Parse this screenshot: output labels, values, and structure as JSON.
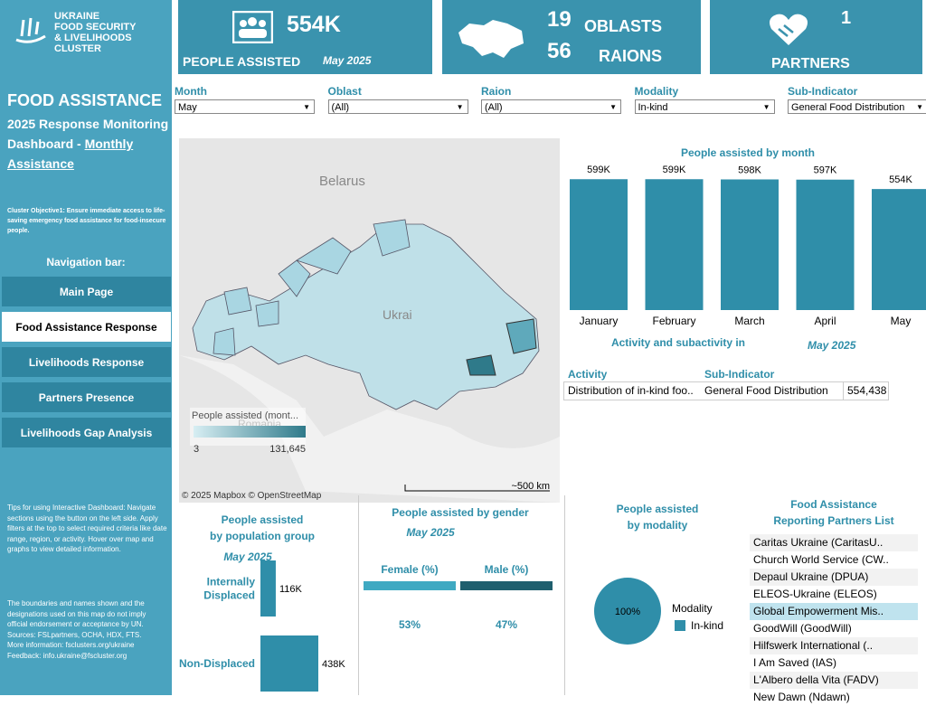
{
  "sidebar": {
    "logo": [
      "UKRAINE",
      "FOOD SECURITY",
      "& LIVELIHOODS CLUSTER"
    ],
    "title": "FOOD ASSISTANCE",
    "subtitle": [
      "2025 Response Monitoring",
      "Dashboard - ",
      "Monthly",
      "Assistance"
    ],
    "objective": "Cluster Objective1:  Ensure immediate access to life-saving emergency food assistance for food-insecure people.",
    "nav_label": "Navigation bar:",
    "nav": [
      "Main Page",
      "Food Assistance Response",
      "Livelihoods Response",
      "Partners Presence",
      "Livelihoods Gap Analysis"
    ],
    "nav_active": 1,
    "tips": "Tips for using Interactive Dashboard: Navigate sections using the button on the left side. Apply filters at the top to select required criteria like date range, region, or activity. Hover over map and graphs to view detailed information.",
    "disclaimer": "The boundaries and names shown and the designations used on this map do not imply official endorsement or acceptance by UN.",
    "sources": "Sources: FSLpartners, OCHA, HDX, FTS.",
    "more_info": "More information: fsclusters.org/ukraine",
    "feedback": "Feedback: info.ukraine@fscluster.org"
  },
  "kpis": {
    "people": {
      "value": "554K",
      "label": "PEOPLE ASSISTED",
      "period": "May 2025"
    },
    "oblasts": {
      "value": 19,
      "label": "OBLASTS"
    },
    "raions": {
      "value": 56,
      "label": "RAIONS"
    },
    "partners": {
      "value": 1,
      "label": "PARTNERS"
    }
  },
  "filters": [
    {
      "label": "Month",
      "value": "May"
    },
    {
      "label": "Oblast",
      "value": "(All)"
    },
    {
      "label": "Raion",
      "value": "(All)"
    },
    {
      "label": "Modality",
      "value": "In-kind"
    },
    {
      "label": "Sub-Indicator",
      "value": "General Food Distribution"
    }
  ],
  "map": {
    "labels": [
      "Belarus",
      "Ukrai",
      "Romania"
    ],
    "legend_title": "People assisted (mont...",
    "legend_min": "3",
    "legend_max": "131,645",
    "scale": "~500 km",
    "attribution": "© 2025 Mapbox  © OpenStreetMap"
  },
  "activity_table": {
    "title": "Activity and subactivity in",
    "period": "May 2025",
    "columns": [
      "Activity",
      "Sub-Indicator"
    ],
    "rows": [
      [
        "Distribution of in-kind foo..",
        "General Food Distribution",
        "554,438"
      ]
    ]
  },
  "partners_list": {
    "title": [
      "Food Assistance",
      "Reporting Partners List"
    ],
    "items": [
      "Caritas Ukraine (CaritasU..",
      "Church World Service (CW..",
      "Depaul Ukraine (DPUA)",
      "ELEOS-Ukraine (ELEOS)",
      "Global Empowerment Mis..",
      "GoodWill (GoodWill)",
      "Hilfswerk International (..",
      "I Am Saved (IAS)",
      "L'Albero della Vita (FADV)",
      "New Dawn (Ndawn)"
    ],
    "highlighted": 4
  },
  "chart_data": [
    {
      "type": "bar",
      "title": "People assisted by month",
      "categories": [
        "January",
        "February",
        "March",
        "April",
        "May"
      ],
      "values": [
        599000,
        599000,
        598000,
        597000,
        554000
      ],
      "value_labels": [
        "599K",
        "599K",
        "598K",
        "597K",
        "554K"
      ],
      "color": "#2f8ea9",
      "ylim": [
        0,
        600000
      ]
    },
    {
      "type": "hbar",
      "title": [
        "People assisted",
        "by population group"
      ],
      "subtitle": "May 2025",
      "categories": [
        [
          "Internally",
          "Displaced"
        ],
        [
          "Non-Displaced"
        ]
      ],
      "values": [
        116000,
        438000
      ],
      "value_labels": [
        "116K",
        "438K"
      ],
      "color": "#2f8ea9",
      "xlim": [
        0,
        438000
      ]
    },
    {
      "type": "strip",
      "title": "People assisted by gender",
      "subtitle": "May 2025",
      "categories": [
        "Female (%)",
        "Male (%)"
      ],
      "values": [
        53,
        47
      ],
      "value_labels": [
        "53%",
        "47%"
      ],
      "colors": [
        "#3fa9c2",
        "#1f5f6e"
      ]
    },
    {
      "type": "pie",
      "title": [
        "People assisted",
        "by modality"
      ],
      "categories": [
        "In-kind"
      ],
      "values": [
        100
      ],
      "value_labels": [
        "100%"
      ],
      "legend_title": "Modality",
      "color": "#2f8ea9"
    }
  ]
}
